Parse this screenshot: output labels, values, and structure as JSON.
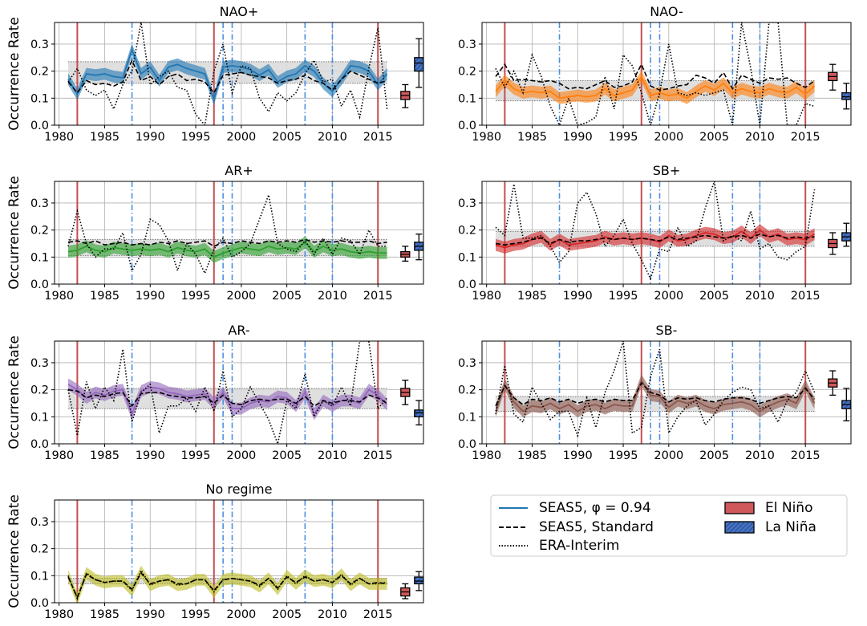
{
  "figure": {
    "ylabel": "Occurrence Rate",
    "yticks": [
      0.0,
      0.1,
      0.2,
      0.3
    ],
    "xticks": [
      1980,
      1985,
      1990,
      1995,
      2000,
      2005,
      2010,
      2015
    ],
    "xlim": [
      1979.5,
      2020.0
    ],
    "ylim": [
      0.0,
      0.38
    ],
    "el_nino_years": [
      1982,
      1997,
      2015
    ],
    "la_nina_years": [
      1988,
      1998,
      1999,
      2007,
      2010
    ],
    "colors": {
      "el_nino_line": "#c44e52",
      "la_nina_line": "#4a90e2",
      "climatology_band": "#d9d9d9",
      "grid": "#b0b0b0",
      "el_nino_box": "#d1585a",
      "la_nina_box": "#4472c4"
    }
  },
  "legend": {
    "items": [
      {
        "label": "SEAS5, φ = 0.94",
        "kind": "line-solid",
        "color": "#1f77b4"
      },
      {
        "label": "SEAS5, Standard",
        "kind": "line-dashed",
        "color": "#000000"
      },
      {
        "label": "ERA-Interim",
        "kind": "line-dotted",
        "color": "#000000"
      },
      {
        "label": "El Niño",
        "kind": "patch",
        "color": "#d1585a"
      },
      {
        "label": "La Niña",
        "kind": "patch-hatched",
        "color": "#4472c4"
      }
    ]
  },
  "chart_data": [
    {
      "type": "line",
      "title": "NAO+",
      "color": "#1f77b4",
      "x_start": 1981,
      "clim_band": [
        0.155,
        0.235
      ],
      "seas5": [
        0.17,
        0.115,
        0.19,
        0.185,
        0.19,
        0.18,
        0.175,
        0.28,
        0.19,
        0.215,
        0.165,
        0.215,
        0.225,
        0.21,
        0.2,
        0.19,
        0.095,
        0.215,
        0.22,
        0.215,
        0.205,
        0.185,
        0.205,
        0.16,
        0.18,
        0.19,
        0.22,
        0.2,
        0.155,
        0.125,
        0.17,
        0.22,
        0.215,
        0.2,
        0.15,
        0.19
      ],
      "standard": [
        0.16,
        0.12,
        0.165,
        0.15,
        0.155,
        0.145,
        0.16,
        0.24,
        0.165,
        0.18,
        0.15,
        0.18,
        0.19,
        0.165,
        0.17,
        0.16,
        0.12,
        0.185,
        0.19,
        0.195,
        0.185,
        0.18,
        0.175,
        0.155,
        0.165,
        0.17,
        0.185,
        0.165,
        0.155,
        0.13,
        0.17,
        0.2,
        0.185,
        0.17,
        0.155,
        0.165
      ],
      "era": [
        0.16,
        0.21,
        0.13,
        0.11,
        0.13,
        0.06,
        0.15,
        0.2,
        0.38,
        0.15,
        0.18,
        0.2,
        0.14,
        0.13,
        0.04,
        0.0,
        0.2,
        0.3,
        0.12,
        0.22,
        0.21,
        0.1,
        0.05,
        0.12,
        0.09,
        0.12,
        0.19,
        0.24,
        0.16,
        0.17,
        0.07,
        0.13,
        0.03,
        0.21,
        0.36,
        0.06
      ],
      "boxes": {
        "el_nino": {
          "min": 0.065,
          "q1": 0.095,
          "median": 0.11,
          "q3": 0.125,
          "max": 0.15
        },
        "la_nina": {
          "min": 0.14,
          "q1": 0.2,
          "median": 0.23,
          "q3": 0.25,
          "max": 0.32
        }
      }
    },
    {
      "type": "line",
      "title": "NAO-",
      "color": "#ff7f0e",
      "x_start": 1981,
      "clim_band": [
        0.09,
        0.165
      ],
      "seas5": [
        0.125,
        0.165,
        0.135,
        0.12,
        0.125,
        0.12,
        0.125,
        0.1,
        0.105,
        0.11,
        0.105,
        0.11,
        0.135,
        0.11,
        0.12,
        0.13,
        0.18,
        0.11,
        0.12,
        0.11,
        0.115,
        0.1,
        0.125,
        0.145,
        0.13,
        0.155,
        0.12,
        0.135,
        0.125,
        0.12,
        0.135,
        0.125,
        0.12,
        0.14,
        0.115,
        0.145
      ],
      "standard": [
        0.18,
        0.225,
        0.165,
        0.17,
        0.165,
        0.16,
        0.165,
        0.155,
        0.135,
        0.14,
        0.135,
        0.15,
        0.165,
        0.14,
        0.145,
        0.16,
        0.225,
        0.145,
        0.13,
        0.135,
        0.145,
        0.15,
        0.185,
        0.175,
        0.155,
        0.195,
        0.135,
        0.185,
        0.17,
        0.155,
        0.175,
        0.17,
        0.175,
        0.155,
        0.14,
        0.165
      ],
      "era": [
        0.21,
        0.14,
        0.2,
        0.12,
        0.26,
        0.18,
        0.07,
        0.0,
        0.1,
        0.0,
        0.01,
        0.03,
        0.18,
        0.06,
        0.26,
        0.22,
        0.12,
        0.0,
        0.12,
        0.3,
        0.12,
        0.11,
        0.12,
        0.11,
        0.12,
        0.13,
        0.0,
        0.38,
        0.21,
        0.0,
        0.38,
        0.38,
        0.0,
        0.0,
        0.08,
        0.07
      ],
      "boxes": {
        "el_nino": {
          "min": 0.13,
          "q1": 0.165,
          "median": 0.18,
          "q3": 0.195,
          "max": 0.225
        },
        "la_nina": {
          "min": 0.06,
          "q1": 0.095,
          "median": 0.105,
          "q3": 0.12,
          "max": 0.155
        }
      }
    },
    {
      "type": "line",
      "title": "AR+",
      "color": "#2ca02c",
      "x_start": 1981,
      "clim_band": [
        0.105,
        0.165
      ],
      "seas5": [
        0.12,
        0.125,
        0.14,
        0.125,
        0.12,
        0.135,
        0.13,
        0.125,
        0.13,
        0.125,
        0.13,
        0.12,
        0.135,
        0.125,
        0.12,
        0.13,
        0.1,
        0.115,
        0.125,
        0.135,
        0.13,
        0.125,
        0.14,
        0.13,
        0.135,
        0.13,
        0.155,
        0.12,
        0.14,
        0.125,
        0.13,
        0.12,
        0.115,
        0.12,
        0.115,
        0.115
      ],
      "standard": [
        0.155,
        0.16,
        0.15,
        0.16,
        0.145,
        0.15,
        0.155,
        0.145,
        0.15,
        0.145,
        0.155,
        0.15,
        0.16,
        0.15,
        0.155,
        0.16,
        0.14,
        0.155,
        0.15,
        0.16,
        0.155,
        0.15,
        0.16,
        0.155,
        0.16,
        0.155,
        0.165,
        0.155,
        0.16,
        0.155,
        0.16,
        0.155,
        0.155,
        0.16,
        0.15,
        0.155
      ],
      "era": [
        0.14,
        0.27,
        0.15,
        0.1,
        0.13,
        0.13,
        0.19,
        0.05,
        0.11,
        0.24,
        0.22,
        0.16,
        0.05,
        0.15,
        0.11,
        0.04,
        0.13,
        0.17,
        0.1,
        0.12,
        0.15,
        0.24,
        0.33,
        0.15,
        0.13,
        0.12,
        0.16,
        0.11,
        0.17,
        0.11,
        0.17,
        0.16,
        0.11,
        0.2,
        0.14,
        0.14
      ],
      "boxes": {
        "el_nino": {
          "min": 0.085,
          "q1": 0.1,
          "median": 0.11,
          "q3": 0.12,
          "max": 0.14
        },
        "la_nina": {
          "min": 0.09,
          "q1": 0.125,
          "median": 0.14,
          "q3": 0.155,
          "max": 0.185
        }
      }
    },
    {
      "type": "line",
      "title": "SB+",
      "color": "#d62728",
      "x_start": 1981,
      "clim_band": [
        0.14,
        0.195
      ],
      "seas5": [
        0.145,
        0.135,
        0.145,
        0.15,
        0.165,
        0.175,
        0.145,
        0.165,
        0.145,
        0.15,
        0.155,
        0.16,
        0.175,
        0.165,
        0.17,
        0.165,
        0.17,
        0.165,
        0.155,
        0.18,
        0.16,
        0.165,
        0.18,
        0.19,
        0.185,
        0.17,
        0.175,
        0.195,
        0.17,
        0.2,
        0.175,
        0.185,
        0.165,
        0.17,
        0.165,
        0.185
      ],
      "standard": [
        0.15,
        0.145,
        0.15,
        0.155,
        0.165,
        0.17,
        0.15,
        0.165,
        0.155,
        0.16,
        0.16,
        0.165,
        0.17,
        0.165,
        0.17,
        0.165,
        0.17,
        0.165,
        0.16,
        0.175,
        0.165,
        0.17,
        0.175,
        0.18,
        0.175,
        0.17,
        0.175,
        0.18,
        0.17,
        0.185,
        0.175,
        0.18,
        0.17,
        0.175,
        0.17,
        0.175
      ],
      "era": [
        0.21,
        0.18,
        0.37,
        0.17,
        0.17,
        0.18,
        0.14,
        0.08,
        0.12,
        0.3,
        0.34,
        0.26,
        0.14,
        0.18,
        0.24,
        0.15,
        0.09,
        0.02,
        0.13,
        0.12,
        0.21,
        0.14,
        0.16,
        0.28,
        0.38,
        0.16,
        0.18,
        0.16,
        0.27,
        0.13,
        0.15,
        0.1,
        0.09,
        0.12,
        0.14,
        0.35
      ],
      "boxes": {
        "el_nino": {
          "min": 0.11,
          "q1": 0.135,
          "median": 0.15,
          "q3": 0.165,
          "max": 0.19
        },
        "la_nina": {
          "min": 0.14,
          "q1": 0.16,
          "median": 0.175,
          "q3": 0.19,
          "max": 0.225
        }
      }
    },
    {
      "type": "line",
      "title": "AR-",
      "color": "#9467bd",
      "x_start": 1981,
      "clim_band": [
        0.13,
        0.205
      ],
      "seas5": [
        0.22,
        0.2,
        0.17,
        0.19,
        0.18,
        0.195,
        0.2,
        0.11,
        0.195,
        0.21,
        0.205,
        0.19,
        0.185,
        0.175,
        0.18,
        0.185,
        0.15,
        0.19,
        0.13,
        0.13,
        0.15,
        0.16,
        0.155,
        0.175,
        0.17,
        0.14,
        0.19,
        0.11,
        0.16,
        0.14,
        0.16,
        0.16,
        0.15,
        0.2,
        0.18,
        0.145
      ],
      "standard": [
        0.2,
        0.195,
        0.17,
        0.18,
        0.175,
        0.185,
        0.19,
        0.14,
        0.185,
        0.19,
        0.19,
        0.18,
        0.175,
        0.17,
        0.17,
        0.175,
        0.15,
        0.18,
        0.15,
        0.145,
        0.16,
        0.165,
        0.16,
        0.165,
        0.165,
        0.15,
        0.175,
        0.14,
        0.16,
        0.15,
        0.16,
        0.16,
        0.155,
        0.18,
        0.17,
        0.15
      ],
      "era": [
        0.2,
        0.03,
        0.23,
        0.13,
        0.21,
        0.16,
        0.35,
        0.08,
        0.19,
        0.22,
        0.04,
        0.14,
        0.14,
        0.17,
        0.12,
        0.21,
        0.12,
        0.27,
        0.1,
        0.13,
        0.21,
        0.15,
        0.09,
        0.0,
        0.16,
        0.13,
        0.26,
        0.1,
        0.16,
        0.14,
        0.21,
        0.14,
        0.38,
        0.38,
        0.13,
        0.17
      ],
      "boxes": {
        "el_nino": {
          "min": 0.145,
          "q1": 0.175,
          "median": 0.19,
          "q3": 0.205,
          "max": 0.235
        },
        "la_nina": {
          "min": 0.07,
          "q1": 0.1,
          "median": 0.115,
          "q3": 0.125,
          "max": 0.16
        }
      }
    },
    {
      "type": "line",
      "title": "SB-",
      "color": "#8c564b",
      "x_start": 1981,
      "clim_band": [
        0.12,
        0.175
      ],
      "seas5": [
        0.12,
        0.22,
        0.155,
        0.12,
        0.14,
        0.135,
        0.15,
        0.13,
        0.145,
        0.12,
        0.14,
        0.145,
        0.13,
        0.145,
        0.14,
        0.14,
        0.235,
        0.18,
        0.175,
        0.135,
        0.16,
        0.15,
        0.16,
        0.14,
        0.13,
        0.145,
        0.15,
        0.155,
        0.145,
        0.12,
        0.14,
        0.155,
        0.165,
        0.15,
        0.215,
        0.15
      ],
      "standard": [
        0.14,
        0.215,
        0.17,
        0.145,
        0.165,
        0.16,
        0.17,
        0.155,
        0.165,
        0.15,
        0.16,
        0.165,
        0.155,
        0.165,
        0.16,
        0.16,
        0.225,
        0.19,
        0.18,
        0.155,
        0.17,
        0.165,
        0.17,
        0.16,
        0.155,
        0.165,
        0.17,
        0.17,
        0.165,
        0.15,
        0.16,
        0.17,
        0.175,
        0.17,
        0.205,
        0.165
      ],
      "era": [
        0.11,
        0.29,
        0.11,
        0.08,
        0.21,
        0.15,
        0.09,
        0.12,
        0.12,
        0.03,
        0.17,
        0.06,
        0.19,
        0.27,
        0.38,
        0.04,
        0.06,
        0.25,
        0.35,
        0.04,
        0.1,
        0.14,
        0.16,
        0.07,
        0.11,
        0.16,
        0.19,
        0.21,
        0.2,
        0.13,
        0.14,
        0.08,
        0.16,
        0.19,
        0.27,
        0.19
      ],
      "boxes": {
        "el_nino": {
          "min": 0.18,
          "q1": 0.21,
          "median": 0.225,
          "q3": 0.24,
          "max": 0.27
        },
        "la_nina": {
          "min": 0.085,
          "q1": 0.13,
          "median": 0.145,
          "q3": 0.16,
          "max": 0.205
        }
      }
    },
    {
      "type": "line",
      "title": "No regime",
      "color": "#bcbd22",
      "x_start": 1981,
      "clim_band": [
        0.07,
        0.09
      ],
      "seas5": [
        0.1,
        0.015,
        0.11,
        0.085,
        0.075,
        0.08,
        0.08,
        0.045,
        0.115,
        0.065,
        0.08,
        0.085,
        0.065,
        0.07,
        0.085,
        0.085,
        0.04,
        0.085,
        0.09,
        0.085,
        0.08,
        0.06,
        0.09,
        0.05,
        0.1,
        0.07,
        0.1,
        0.08,
        0.085,
        0.075,
        0.105,
        0.065,
        0.09,
        0.07,
        0.07,
        0.07
      ],
      "standard": [
        0.095,
        0.02,
        0.105,
        0.085,
        0.075,
        0.08,
        0.08,
        0.05,
        0.11,
        0.07,
        0.08,
        0.085,
        0.07,
        0.07,
        0.085,
        0.085,
        0.045,
        0.085,
        0.09,
        0.085,
        0.08,
        0.065,
        0.09,
        0.055,
        0.095,
        0.075,
        0.095,
        0.08,
        0.085,
        0.075,
        0.1,
        0.07,
        0.09,
        0.07,
        0.075,
        0.07
      ],
      "era": [
        0.1,
        0.015,
        0.11,
        0.085,
        0.075,
        0.08,
        0.08,
        0.045,
        0.12,
        0.065,
        0.08,
        0.085,
        0.065,
        0.07,
        0.085,
        0.085,
        0.04,
        0.085,
        0.09,
        0.085,
        0.08,
        0.06,
        0.09,
        0.05,
        0.1,
        0.07,
        0.1,
        0.08,
        0.085,
        0.075,
        0.105,
        0.065,
        0.09,
        0.07,
        0.07,
        0.075
      ],
      "boxes": {
        "el_nino": {
          "min": 0.015,
          "q1": 0.025,
          "median": 0.04,
          "q3": 0.055,
          "max": 0.07
        },
        "la_nina": {
          "min": 0.045,
          "q1": 0.07,
          "median": 0.08,
          "q3": 0.095,
          "max": 0.115
        }
      }
    }
  ]
}
